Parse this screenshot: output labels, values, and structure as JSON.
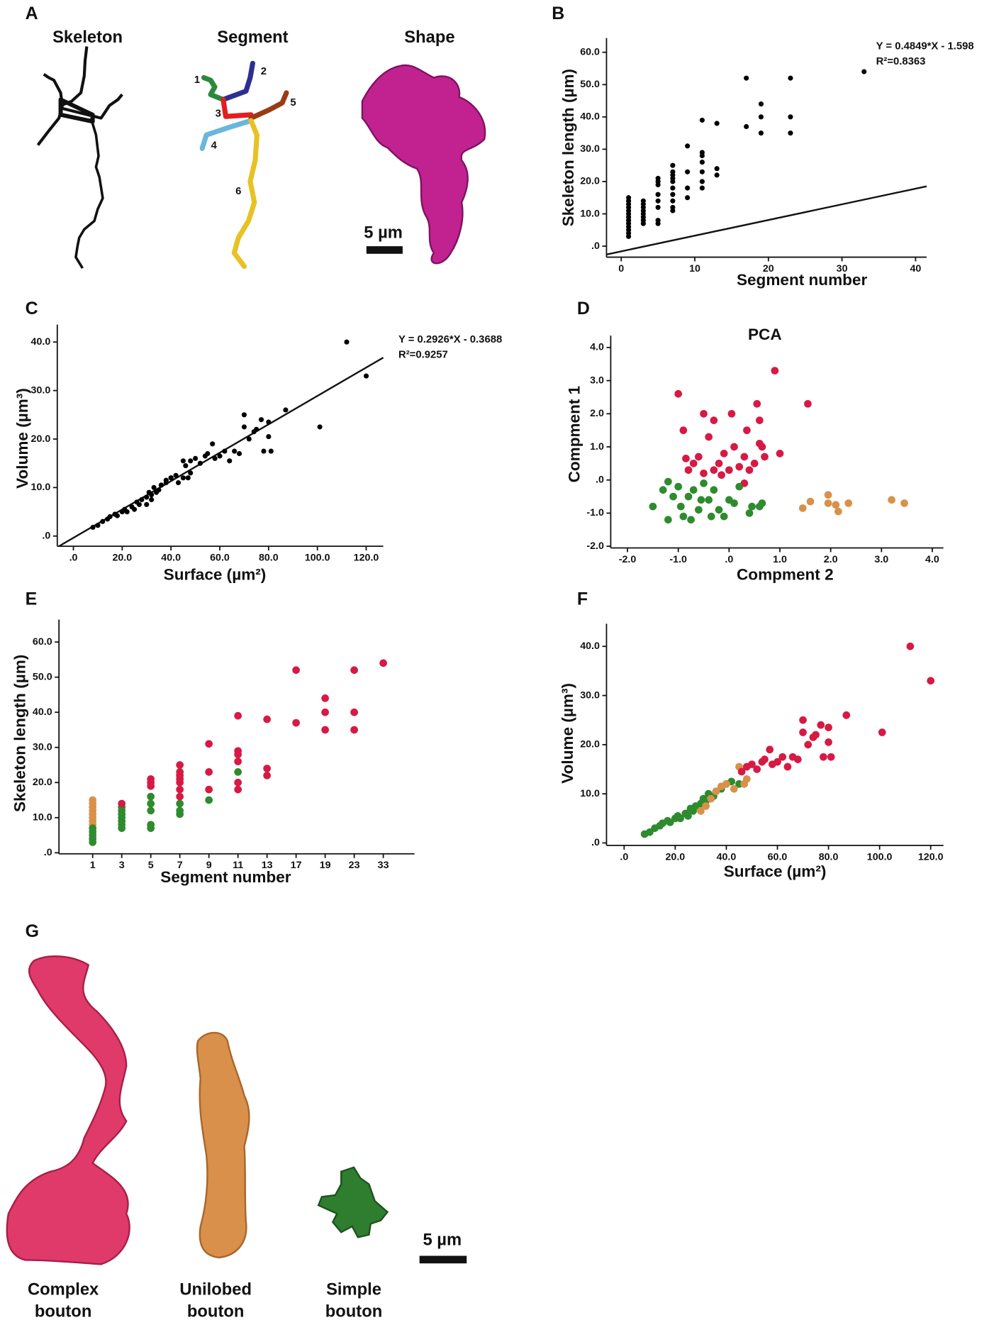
{
  "figure": {
    "panel_letters": [
      "A",
      "B",
      "C",
      "D",
      "E",
      "F",
      "G"
    ],
    "panel_a": {
      "headings": [
        "Skeleton",
        "Segment",
        "Shape"
      ],
      "segment_numbers": [
        "1",
        "2",
        "3",
        "4",
        "5",
        "6"
      ],
      "scale_bar": "5 µm"
    },
    "panel_g": {
      "labels": [
        [
          "Complex",
          "bouton"
        ],
        [
          "Unilobed",
          "bouton"
        ],
        [
          "Simple",
          "bouton"
        ]
      ],
      "scale_bar": "5 µm"
    }
  },
  "chart_data": [
    {
      "type": "scatter",
      "xlabel": "Segment number",
      "ylabel": "Skeleton length (µm)",
      "color": "#000000",
      "x": [
        1,
        1,
        1,
        1,
        1,
        1,
        1,
        1,
        1,
        1,
        1,
        1,
        1,
        3,
        3,
        3,
        3,
        3,
        3,
        3,
        3,
        5,
        5,
        5,
        5,
        5,
        5,
        5,
        5,
        7,
        7,
        7,
        7,
        7,
        7,
        7,
        7,
        7,
        7,
        9,
        9,
        9,
        9,
        11,
        11,
        11,
        11,
        11,
        11,
        11,
        13,
        13,
        13,
        17,
        17,
        19,
        19,
        19,
        23,
        23,
        23,
        33
      ],
      "values": [
        3,
        4,
        5,
        6,
        7,
        8,
        9,
        10,
        11,
        12,
        13,
        14,
        15,
        7,
        8,
        9,
        10,
        11,
        12,
        13,
        14,
        7,
        8,
        12,
        14,
        16,
        19,
        20,
        21,
        11,
        12,
        14,
        16,
        18,
        20,
        21,
        22,
        23,
        25,
        15,
        18,
        23,
        31,
        18,
        20,
        23,
        26,
        28,
        29,
        39,
        22,
        24,
        38,
        37,
        52,
        35,
        40,
        44,
        35,
        40,
        52,
        54
      ],
      "xlim": [
        -2,
        41.5
      ],
      "ylim": [
        -3.4,
        64.4
      ],
      "xticks": [
        0,
        10,
        20,
        30,
        40
      ],
      "yticks": [
        {
          "value": 0,
          "label": ".0"
        },
        {
          "value": 10,
          "label": "10.0"
        },
        {
          "value": 20,
          "label": "20.0"
        },
        {
          "value": 30,
          "label": "30.0"
        },
        {
          "value": 40,
          "label": "40.0"
        },
        {
          "value": 50,
          "label": "50.0"
        },
        {
          "value": 60,
          "label": "60.0"
        }
      ],
      "fit": {
        "slope": 0.4849,
        "intercept": -1.598
      },
      "annotations": [
        "Y = 0.4849*X - 1.598",
        "R²=0.8363"
      ]
    },
    {
      "type": "scatter",
      "xlabel": "Surface (µm²)",
      "ylabel": "Volume (µm³)",
      "color": "#000000",
      "x": [
        8,
        10,
        12,
        14,
        15,
        17,
        18,
        20,
        21,
        22,
        24,
        25,
        26,
        27,
        28,
        30,
        31,
        32,
        33,
        35,
        36,
        38,
        40,
        42,
        45,
        30,
        32,
        34,
        36,
        38,
        40,
        43,
        45,
        47,
        48,
        46,
        48,
        50,
        52,
        54,
        55,
        57,
        58,
        60,
        62,
        64,
        66,
        68,
        70,
        72,
        74,
        75,
        77,
        80,
        78,
        81,
        80,
        87,
        70,
        101,
        112,
        120
      ],
      "values": [
        1.8,
        2.2,
        3,
        3.5,
        4,
        4.5,
        4.2,
        5,
        5.5,
        5,
        6,
        5.5,
        7,
        6.5,
        7.5,
        8,
        9,
        8.5,
        10,
        9.5,
        10.5,
        11,
        12,
        12.5,
        12,
        6.5,
        7.5,
        9,
        10.5,
        11.5,
        12,
        11,
        15.5,
        12,
        13,
        14.5,
        15.5,
        16,
        15,
        16.5,
        17,
        19,
        16,
        16.5,
        17.5,
        15.5,
        17.5,
        17,
        22.5,
        20,
        21.5,
        22,
        24,
        23.5,
        17.5,
        17.5,
        20.5,
        26,
        25,
        22.5,
        40,
        33
      ],
      "xlim": [
        -6.6,
        127
      ],
      "ylim": [
        -2.1,
        43.6
      ],
      "xticks": [
        {
          "value": 0,
          "label": ".0"
        },
        {
          "value": 20,
          "label": "20.0"
        },
        {
          "value": 40,
          "label": "40.0"
        },
        {
          "value": 60,
          "label": "60.0"
        },
        {
          "value": 80,
          "label": "80.0"
        },
        {
          "value": 100,
          "label": "100.0"
        },
        {
          "value": 120,
          "label": "120.0"
        }
      ],
      "yticks": [
        {
          "value": 0,
          "label": ".0"
        },
        {
          "value": 10,
          "label": "10.0"
        },
        {
          "value": 20,
          "label": "20.0"
        },
        {
          "value": 30,
          "label": "30.0"
        },
        {
          "value": 40,
          "label": "40.0"
        }
      ],
      "fit": {
        "slope": 0.2926,
        "intercept": -0.3688
      },
      "annotations": [
        "Y = 0.2926*X - 0.3688",
        "R²=0.9257"
      ]
    },
    {
      "type": "scatter",
      "title": "PCA",
      "xlabel": "Compment 2",
      "ylabel": "Compment 1",
      "xlim": [
        -2.33,
        4.22
      ],
      "ylim": [
        -2.05,
        4.36
      ],
      "xticks": [
        {
          "value": -2,
          "label": "-2.0"
        },
        {
          "value": -1,
          "label": "-1.0"
        },
        {
          "value": 0,
          "label": ".0"
        },
        {
          "value": 1,
          "label": "1.0"
        },
        {
          "value": 2,
          "label": "2.0"
        },
        {
          "value": 3,
          "label": "3.0"
        },
        {
          "value": 4,
          "label": "4.0"
        }
      ],
      "yticks": [
        {
          "value": -2,
          "label": "-2.0"
        },
        {
          "value": -1,
          "label": "-1.0"
        },
        {
          "value": 0,
          "label": ".0"
        },
        {
          "value": 1,
          "label": "1.0"
        },
        {
          "value": 2,
          "label": "2.0"
        },
        {
          "value": 3,
          "label": "3.0"
        },
        {
          "value": 4,
          "label": "4.0"
        }
      ],
      "series": [
        {
          "color": "#d61a44",
          "x": [
            -1,
            -0.9,
            -0.8,
            -0.7,
            -0.6,
            -0.5,
            -0.5,
            -0.4,
            -0.3,
            -0.3,
            -0.2,
            -0.1,
            0,
            0.05,
            0.1,
            0.2,
            0.3,
            0.35,
            0.4,
            0.5,
            0.55,
            0.6,
            0.6,
            0.65,
            0.7,
            0.9,
            1.0,
            1.55,
            0.3,
            -0.15,
            -0.85
          ],
          "values": [
            2.6,
            1.5,
            0.3,
            0.5,
            0.7,
            0.2,
            2,
            1.3,
            1.8,
            0.3,
            0.5,
            0.8,
            0.3,
            2.0,
            1.0,
            0.4,
            0.7,
            1.5,
            0.3,
            0.5,
            2.3,
            1.1,
            1.8,
            1.0,
            0.7,
            3.3,
            0.8,
            2.3,
            -0.1,
            0.15,
            0.65
          ]
        },
        {
          "color": "#2e8b2e",
          "x": [
            -1.5,
            -1.3,
            -1.2,
            -1.1,
            -1,
            -0.95,
            -0.9,
            -0.8,
            -0.75,
            -0.7,
            -0.6,
            -0.55,
            -0.5,
            -0.4,
            -0.35,
            -0.3,
            -0.2,
            -0.1,
            0,
            0.1,
            0.2,
            0.4,
            0.45,
            0.6,
            0.65,
            -1.2
          ],
          "values": [
            -0.8,
            -0.3,
            -1.2,
            -0.5,
            -0.2,
            -0.8,
            -1.1,
            -0.5,
            -1.2,
            -0.3,
            -0.9,
            -0.6,
            -0.1,
            -0.6,
            -1.1,
            -0.3,
            -0.9,
            -1.1,
            -0.6,
            -0.7,
            -0.2,
            -1.0,
            -0.8,
            -0.8,
            -0.7,
            -0.05
          ]
        },
        {
          "color": "#d8914a",
          "x": [
            1.45,
            1.6,
            1.95,
            1.95,
            2.1,
            2.15,
            2.35,
            3.2,
            3.45
          ],
          "values": [
            -0.85,
            -0.65,
            -0.45,
            -0.7,
            -0.75,
            -0.95,
            -0.7,
            -0.6,
            -0.7
          ]
        }
      ]
    },
    {
      "type": "scatter",
      "xlabel": "Segment number",
      "ylabel": "Skeleton length (µm)",
      "categories": [
        "1",
        "3",
        "5",
        "7",
        "9",
        "11",
        "13",
        "17",
        "19",
        "23",
        "33"
      ],
      "ylim": [
        -0.3,
        66.4
      ],
      "yticks": [
        {
          "value": 0,
          "label": ".0"
        },
        {
          "value": 10,
          "label": "10.0"
        },
        {
          "value": 20,
          "label": "20.0"
        },
        {
          "value": 30,
          "label": "30.0"
        },
        {
          "value": 40,
          "label": "40.0"
        },
        {
          "value": 50,
          "label": "50.0"
        },
        {
          "value": 60,
          "label": "60.0"
        }
      ],
      "series": [
        {
          "color": "#d8914a",
          "x": [
            "1",
            "1",
            "1",
            "1",
            "1",
            "1",
            "1",
            "1"
          ],
          "values": [
            8,
            9,
            10,
            11,
            12,
            13,
            14,
            15
          ]
        },
        {
          "color": "#2e8b2e",
          "x": [
            "1",
            "1",
            "1",
            "1",
            "1",
            "3",
            "3",
            "3",
            "3",
            "3",
            "3",
            "3",
            "5",
            "5",
            "5",
            "5",
            "5",
            "7",
            "7",
            "7",
            "9",
            "11"
          ],
          "values": [
            3,
            4,
            5,
            6,
            7,
            7,
            8,
            9,
            10,
            11,
            12,
            13,
            7,
            8,
            12,
            14,
            16,
            11,
            12,
            14,
            15,
            23
          ]
        },
        {
          "color": "#d61a44",
          "x": [
            "3",
            "5",
            "5",
            "5",
            "7",
            "7",
            "7",
            "7",
            "7",
            "7",
            "7",
            "9",
            "9",
            "9",
            "11",
            "11",
            "11",
            "11",
            "11",
            "11",
            "13",
            "13",
            "13",
            "17",
            "17",
            "19",
            "19",
            "19",
            "23",
            "23",
            "23",
            "33"
          ],
          "values": [
            14,
            19,
            20,
            21,
            16,
            18,
            20,
            21,
            22,
            23,
            25,
            18,
            23,
            31,
            18,
            20,
            26,
            28,
            29,
            39,
            22,
            24,
            38,
            37,
            52,
            35,
            40,
            44,
            35,
            40,
            52,
            54
          ]
        }
      ]
    },
    {
      "type": "scatter",
      "xlabel": "Surface (µm²)",
      "ylabel": "Volume (µm³)",
      "xlim": [
        -6.9,
        125
      ],
      "ylim": [
        -0.5,
        44.6
      ],
      "xticks": [
        {
          "value": 0,
          "label": ".0"
        },
        {
          "value": 20,
          "label": "20.0"
        },
        {
          "value": 40,
          "label": "40.0"
        },
        {
          "value": 60,
          "label": "60.0"
        },
        {
          "value": 80,
          "label": "80.0"
        },
        {
          "value": 100,
          "label": "100.0"
        },
        {
          "value": 120,
          "label": "120.0"
        }
      ],
      "yticks": [
        {
          "value": 0,
          "label": ".0"
        },
        {
          "value": 10,
          "label": "10.0"
        },
        {
          "value": 20,
          "label": "20.0"
        },
        {
          "value": 30,
          "label": "30.0"
        },
        {
          "value": 40,
          "label": "40.0"
        }
      ],
      "series": [
        {
          "color": "#2e8b2e",
          "x": [
            8,
            10,
            12,
            14,
            15,
            17,
            18,
            20,
            21,
            22,
            24,
            25,
            26,
            27,
            28,
            30,
            31,
            32,
            33,
            35,
            36,
            38,
            40,
            42,
            45
          ],
          "values": [
            1.8,
            2.2,
            3,
            3.5,
            4,
            4.5,
            4.2,
            5,
            5.5,
            5,
            6,
            5.5,
            7,
            6.5,
            7.5,
            8,
            9,
            8.5,
            10,
            9.5,
            10.5,
            11,
            12,
            12.5,
            12
          ]
        },
        {
          "color": "#d8914a",
          "x": [
            30,
            32,
            34,
            36,
            38,
            40,
            43,
            45,
            47,
            48
          ],
          "values": [
            6.5,
            7.5,
            9,
            10.5,
            11.5,
            12,
            11,
            15.5,
            12,
            13
          ]
        },
        {
          "color": "#d61a44",
          "x": [
            46,
            48,
            50,
            52,
            54,
            55,
            57,
            58,
            60,
            62,
            64,
            66,
            68,
            70,
            72,
            74,
            75,
            77,
            80,
            78,
            81,
            80,
            87,
            70,
            101,
            112,
            120
          ],
          "values": [
            14.5,
            15.5,
            16,
            15,
            16.5,
            17,
            19,
            16,
            16.5,
            17.5,
            15.5,
            17.5,
            17,
            22.5,
            20,
            21.5,
            22,
            24,
            23.5,
            17.5,
            17.5,
            20.5,
            26,
            25,
            22.5,
            40,
            33
          ]
        }
      ]
    }
  ]
}
